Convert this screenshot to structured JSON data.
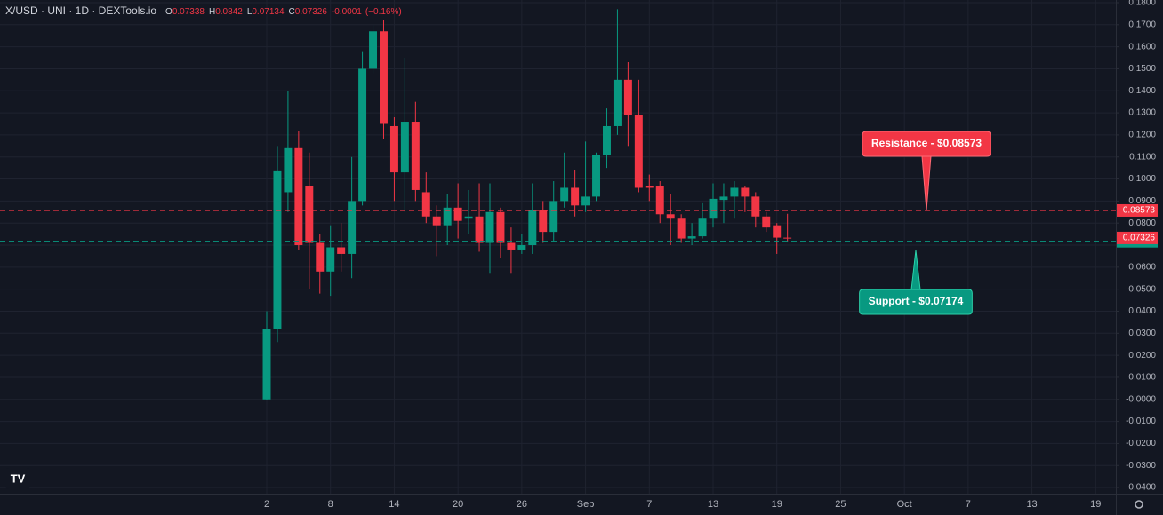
{
  "chart_data": {
    "type": "candlestick",
    "title": "X/USD · UNI · 1D · DEXTools.io",
    "ohlc_labels": [
      "O",
      "H",
      "L",
      "C"
    ],
    "change": -0.0001,
    "change_percent": "(−0.16%)",
    "x": [
      0,
      1,
      2,
      3,
      4,
      5,
      6,
      7,
      8,
      9,
      10,
      11,
      12,
      13,
      14,
      15,
      16,
      17,
      18,
      19,
      20,
      21,
      22,
      23,
      24,
      25,
      26,
      27,
      28,
      29,
      30,
      31,
      32,
      33,
      34,
      35,
      36,
      37,
      38,
      39,
      40,
      41,
      42,
      43,
      44,
      45,
      46,
      47,
      48,
      49
    ],
    "open": [
      0.0,
      0.032,
      0.094,
      0.114,
      0.097,
      0.071,
      0.058,
      0.069,
      0.066,
      0.09,
      0.15,
      0.167,
      0.124,
      0.103,
      0.126,
      0.094,
      0.083,
      0.079,
      0.087,
      0.082,
      0.083,
      0.071,
      0.085,
      0.071,
      0.068,
      0.07,
      0.086,
      0.076,
      0.09,
      0.096,
      0.088,
      0.092,
      0.111,
      0.124,
      0.145,
      0.129,
      0.097,
      0.097,
      0.084,
      0.082,
      0.073,
      0.074,
      0.082,
      0.0905,
      0.092,
      0.096,
      0.092,
      0.083,
      0.079,
      0.07338
    ],
    "high": [
      0.04,
      0.115,
      0.14,
      0.122,
      0.112,
      0.075,
      0.079,
      0.08,
      0.11,
      0.158,
      0.17,
      0.172,
      0.128,
      0.155,
      0.135,
      0.103,
      0.088,
      0.093,
      0.098,
      0.095,
      0.098,
      0.098,
      0.087,
      0.078,
      0.075,
      0.098,
      0.09,
      0.099,
      0.112,
      0.104,
      0.117,
      0.112,
      0.132,
      0.177,
      0.153,
      0.145,
      0.102,
      0.099,
      0.093,
      0.084,
      0.08,
      0.089,
      0.098,
      0.098,
      0.099,
      0.097,
      0.094,
      0.085,
      0.08,
      0.0842
    ],
    "low": [
      -0.0005,
      0.026,
      0.085,
      0.068,
      0.05,
      0.048,
      0.047,
      0.058,
      0.055,
      0.088,
      0.148,
      0.118,
      0.09,
      0.085,
      0.09,
      0.08,
      0.065,
      0.07,
      0.073,
      0.075,
      0.067,
      0.057,
      0.064,
      0.057,
      0.066,
      0.066,
      0.071,
      0.072,
      0.087,
      0.083,
      0.085,
      0.09,
      0.105,
      0.12,
      0.115,
      0.094,
      0.09,
      0.08,
      0.07,
      0.071,
      0.07,
      0.073,
      0.078,
      0.08,
      0.082,
      0.085,
      0.078,
      0.076,
      0.066,
      0.07134
    ],
    "close": [
      0.032,
      0.1035,
      0.114,
      0.07,
      0.071,
      0.058,
      0.069,
      0.066,
      0.09,
      0.15,
      0.167,
      0.125,
      0.103,
      0.126,
      0.095,
      0.083,
      0.079,
      0.087,
      0.081,
      0.083,
      0.071,
      0.085,
      0.071,
      0.068,
      0.07,
      0.086,
      0.076,
      0.09,
      0.096,
      0.088,
      0.092,
      0.111,
      0.124,
      0.145,
      0.129,
      0.096,
      0.096,
      0.084,
      0.082,
      0.073,
      0.074,
      0.082,
      0.091,
      0.092,
      0.096,
      0.092,
      0.083,
      0.078,
      0.0734,
      0.07326
    ],
    "up_color": "#089981",
    "down_color": "#f23645",
    "xlim": [
      -25.1,
      79.9
    ],
    "xticks": [
      {
        "value": 0,
        "label": "2"
      },
      {
        "value": 6,
        "label": "8"
      },
      {
        "value": 12,
        "label": "14"
      },
      {
        "value": 18,
        "label": "20"
      },
      {
        "value": 24,
        "label": "26"
      },
      {
        "value": 30,
        "label": "Sep"
      },
      {
        "value": 36,
        "label": "7"
      },
      {
        "value": 42,
        "label": "13"
      },
      {
        "value": 48,
        "label": "19"
      },
      {
        "value": 54,
        "label": "25"
      },
      {
        "value": 60,
        "label": "Oct"
      },
      {
        "value": 66,
        "label": "7"
      },
      {
        "value": 72,
        "label": "13"
      },
      {
        "value": 78,
        "label": "19"
      }
    ],
    "ylim": [
      -0.0428,
      0.1812
    ],
    "yticks": [
      {
        "value": 0.18,
        "label": "0.1800"
      },
      {
        "value": 0.17,
        "label": "0.1700"
      },
      {
        "value": 0.16,
        "label": "0.1600"
      },
      {
        "value": 0.15,
        "label": "0.1500"
      },
      {
        "value": 0.14,
        "label": "0.1400"
      },
      {
        "value": 0.13,
        "label": "0.1300"
      },
      {
        "value": 0.12,
        "label": "0.1200"
      },
      {
        "value": 0.11,
        "label": "0.1100"
      },
      {
        "value": 0.1,
        "label": "0.1000"
      },
      {
        "value": 0.09,
        "label": "0.0900"
      },
      {
        "value": 0.08,
        "label": "0.0800"
      },
      {
        "value": 0.07,
        "label": "0.0700"
      },
      {
        "value": 0.06,
        "label": "0.0600"
      },
      {
        "value": 0.05,
        "label": "0.0500"
      },
      {
        "value": 0.04,
        "label": "0.0400"
      },
      {
        "value": 0.03,
        "label": "0.0300"
      },
      {
        "value": 0.02,
        "label": "0.0200"
      },
      {
        "value": 0.01,
        "label": "0.0100"
      },
      {
        "value": 0,
        "label": "-0.0000"
      },
      {
        "value": -0.01,
        "label": "-0.0100"
      },
      {
        "value": -0.02,
        "label": "-0.0200"
      },
      {
        "value": -0.03,
        "label": "-0.0300"
      },
      {
        "value": -0.04,
        "label": "-0.0400"
      }
    ],
    "grid": true,
    "resistance": {
      "label": "Resistance - $0.08573",
      "value": 0.08573,
      "color": "#f23645"
    },
    "support": {
      "label": "Support - $0.07174",
      "value": 0.07174,
      "color": "#089981"
    }
  }
}
